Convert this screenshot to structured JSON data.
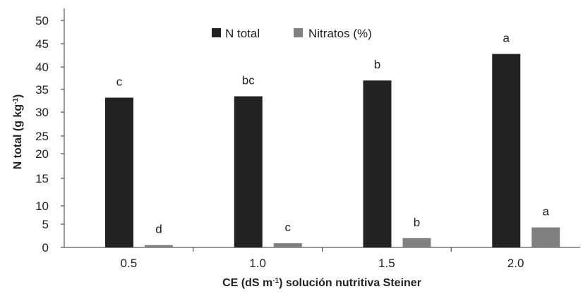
{
  "chart_data": {
    "type": "bar",
    "categories": [
      "0.5",
      "1.0",
      "1.5",
      "2.0"
    ],
    "series": [
      {
        "name": "N total",
        "color": "#222222",
        "values": [
          33.2,
          33.5,
          37.0,
          42.8
        ],
        "labels": [
          "c",
          "bc",
          "b",
          "a"
        ]
      },
      {
        "name": "Nitratos (%)",
        "color": "#808080",
        "values": [
          0.5,
          0.9,
          2.0,
          4.3
        ],
        "labels": [
          "d",
          "c",
          "b",
          "a"
        ]
      }
    ],
    "ylim": [
      0,
      50
    ],
    "yticks": [
      "0",
      "5",
      "10",
      "15",
      "20",
      "25",
      "30",
      "35",
      "40",
      "45",
      "50"
    ],
    "ylabel_parts": [
      "N total  (g kg",
      "-1",
      ")"
    ],
    "xlabel_parts": [
      "CE (dS m",
      "-1",
      ") solución nutritiva Steiner"
    ],
    "legend_position": "top-center",
    "grid": false
  }
}
